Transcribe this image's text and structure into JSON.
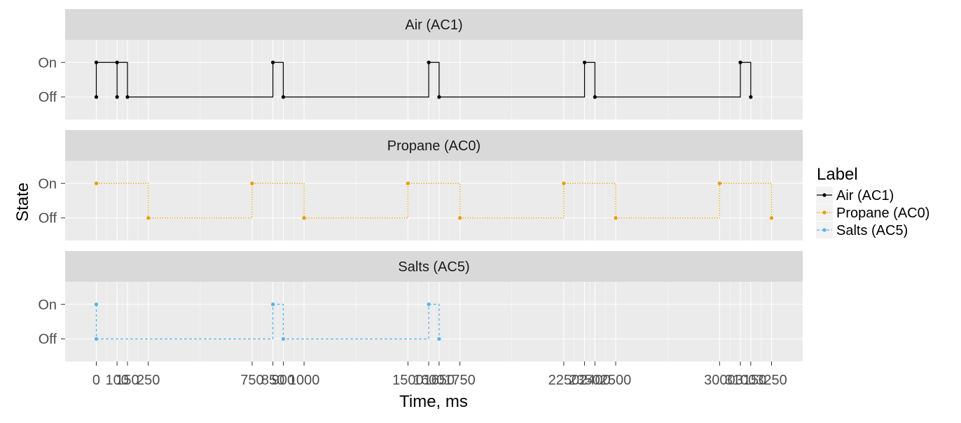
{
  "chart_data": {
    "type": "line",
    "step": "horizontal-then-vertical",
    "xlabel": "Time, ms",
    "ylabel": "State",
    "xlim": [
      -150,
      3400
    ],
    "x_ticks": [
      0,
      100,
      150,
      250,
      750,
      850,
      900,
      1000,
      1500,
      1600,
      1650,
      1750,
      2250,
      2350,
      2400,
      2500,
      3000,
      3100,
      3150,
      3250
    ],
    "x_tick_labels": [
      "0",
      "100",
      "150",
      "250",
      "750",
      "850",
      "900",
      "1000",
      "1500",
      "1600",
      "1650",
      "1750",
      "2250",
      "2350",
      "2400",
      "2500",
      "3000",
      "3100",
      "3150",
      "3250"
    ],
    "y_categories": [
      "Off",
      "On"
    ],
    "grid": true,
    "legend": {
      "title": "Label",
      "position": "right",
      "items": [
        "Air (AC1)",
        "Propane (AC0)",
        "Salts (AC5)"
      ]
    },
    "panels": [
      {
        "title": "Air (AC1)",
        "series": "Air (AC1)",
        "color": "#000000",
        "dash": "solid",
        "points": [
          {
            "x": 0,
            "y": "Off"
          },
          {
            "x": 0,
            "y": "On"
          },
          {
            "x": 100,
            "y": "Off"
          },
          {
            "x": 100,
            "y": "On"
          },
          {
            "x": 150,
            "y": "Off"
          },
          {
            "x": 850,
            "y": "On"
          },
          {
            "x": 900,
            "y": "Off"
          },
          {
            "x": 1600,
            "y": "On"
          },
          {
            "x": 1650,
            "y": "Off"
          },
          {
            "x": 2350,
            "y": "On"
          },
          {
            "x": 2400,
            "y": "Off"
          },
          {
            "x": 3100,
            "y": "On"
          },
          {
            "x": 3150,
            "y": "Off"
          }
        ]
      },
      {
        "title": "Propane (AC0)",
        "series": "Propane (AC0)",
        "color": "#E69F00",
        "dash": "dotted",
        "points": [
          {
            "x": 0,
            "y": "On"
          },
          {
            "x": 250,
            "y": "Off"
          },
          {
            "x": 750,
            "y": "On"
          },
          {
            "x": 1000,
            "y": "Off"
          },
          {
            "x": 1500,
            "y": "On"
          },
          {
            "x": 1750,
            "y": "Off"
          },
          {
            "x": 2250,
            "y": "On"
          },
          {
            "x": 2500,
            "y": "Off"
          },
          {
            "x": 3000,
            "y": "On"
          },
          {
            "x": 3250,
            "y": "Off"
          }
        ]
      },
      {
        "title": "Salts (AC5)",
        "series": "Salts (AC5)",
        "color": "#56B4E9",
        "dash": "dashed",
        "points": [
          {
            "x": 0,
            "y": "On"
          },
          {
            "x": 0,
            "y": "Off"
          },
          {
            "x": 850,
            "y": "On"
          },
          {
            "x": 900,
            "y": "Off"
          },
          {
            "x": 1600,
            "y": "On"
          },
          {
            "x": 1650,
            "y": "Off"
          }
        ]
      }
    ]
  }
}
